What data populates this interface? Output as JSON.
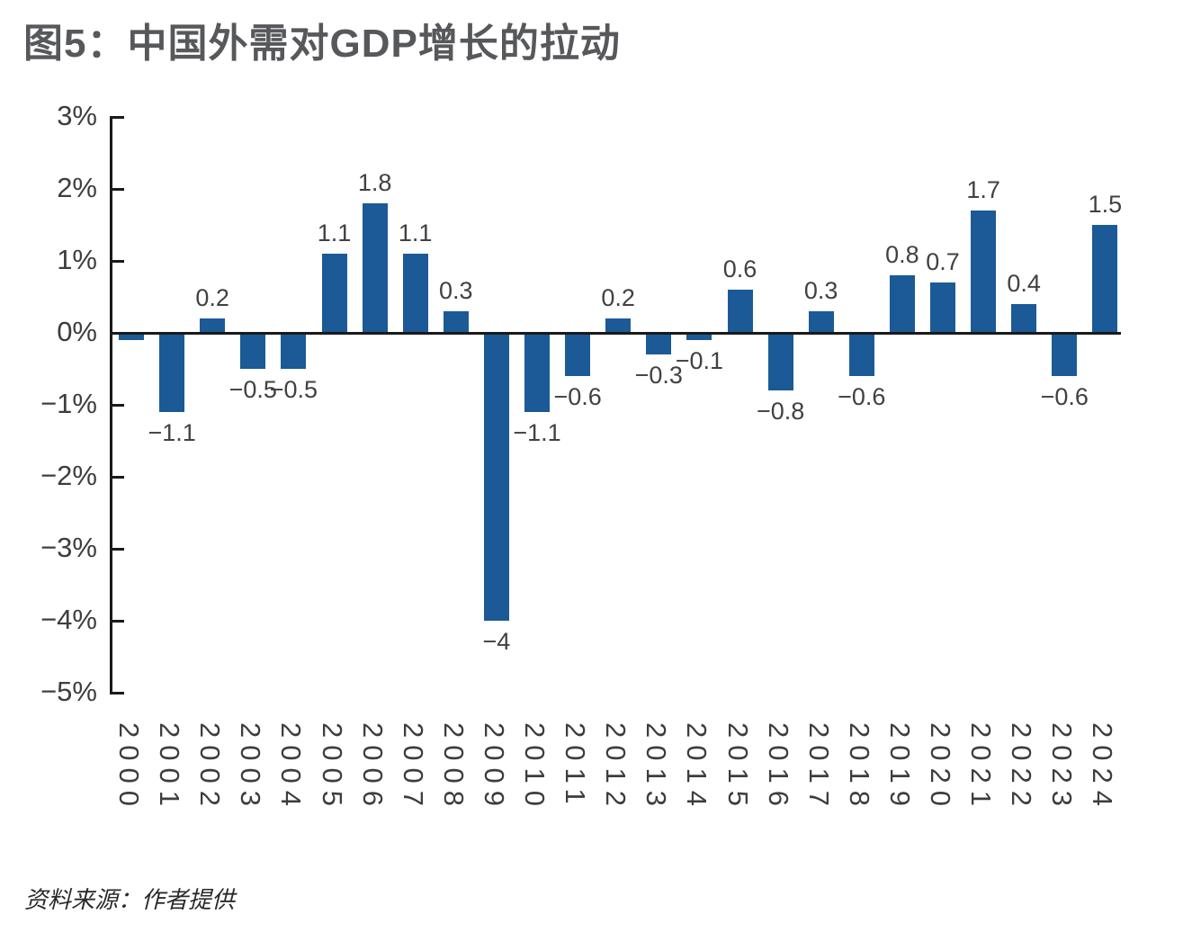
{
  "title": "图5：中国外需对GDP增长的拉动",
  "source": "资料来源：作者提供",
  "colors": {
    "bar": "#1b5a96",
    "axis": "#1a1a1a",
    "title": "#57585b",
    "tick_label": "#3d3d3f",
    "value_label": "#414043"
  },
  "chart_data": {
    "type": "bar",
    "title": "图5：中国外需对GDP增长的拉动",
    "xlabel": "",
    "ylabel": "",
    "ylim": [
      -5,
      3
    ],
    "grid": false,
    "legend": "none",
    "categories": [
      "2000",
      "2001",
      "2002",
      "2003",
      "2004",
      "2005",
      "2006",
      "2007",
      "2008",
      "2009",
      "2010",
      "2011",
      "2012",
      "2013",
      "2014",
      "2015",
      "2016",
      "2017",
      "2018",
      "2019",
      "2020",
      "2021",
      "2022",
      "2023",
      "2024"
    ],
    "values": [
      -0.1,
      -1.1,
      0.2,
      -0.5,
      -0.5,
      1.1,
      1.8,
      1.1,
      0.3,
      -4,
      -1.1,
      -0.6,
      0.2,
      -0.3,
      -0.1,
      0.6,
      -0.8,
      0.3,
      -0.6,
      0.8,
      0.7,
      1.7,
      0.4,
      -0.6,
      1.5
    ],
    "point_labels": [
      "",
      "−1.1",
      "0.2",
      "−0.5",
      "−0.5",
      "1.1",
      "1.8",
      "1.1",
      "0.3",
      "−4",
      "−1.1",
      "−0.6",
      "0.2",
      "−0.3",
      "−0.1",
      "0.6",
      "−0.8",
      "0.3",
      "−0.6",
      "0.8",
      "0.7",
      "1.7",
      "0.4",
      "−0.6",
      "1.5"
    ],
    "y_ticks": [
      3,
      2,
      1,
      0,
      -1,
      -2,
      -3,
      -4,
      -5
    ],
    "y_tick_labels": [
      "3%",
      "2%",
      "1%",
      "0%",
      "−1%",
      "−2%",
      "−3%",
      "−4%",
      "−5%"
    ]
  }
}
